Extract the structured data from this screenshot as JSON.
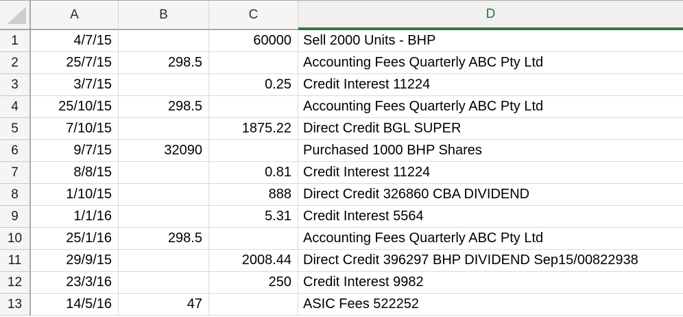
{
  "sheet": {
    "col_headers": [
      "A",
      "B",
      "C",
      "D"
    ],
    "selected_column": "D",
    "colors": {
      "selected_header_green": "#3b7248",
      "selected_header_text": "#2f7040",
      "header_bg": "#f5f5f4",
      "gridline": "#d9d9d9"
    },
    "rows": [
      {
        "num": "1",
        "A": "4/7/15",
        "B": "",
        "C": "60000",
        "D": "Sell 2000 Units - BHP"
      },
      {
        "num": "2",
        "A": "25/7/15",
        "B": "298.5",
        "C": "",
        "D": "Accounting Fees Quarterly ABC Pty Ltd"
      },
      {
        "num": "3",
        "A": "3/7/15",
        "B": "",
        "C": "0.25",
        "D": "Credit Interest 11224"
      },
      {
        "num": "4",
        "A": "25/10/15",
        "B": "298.5",
        "C": "",
        "D": "Accounting Fees Quarterly ABC Pty Ltd"
      },
      {
        "num": "5",
        "A": "7/10/15",
        "B": "",
        "C": "1875.22",
        "D": "Direct Credit BGL SUPER"
      },
      {
        "num": "6",
        "A": "9/7/15",
        "B": "32090",
        "C": "",
        "D": "Purchased 1000 BHP Shares"
      },
      {
        "num": "7",
        "A": "8/8/15",
        "B": "",
        "C": "0.81",
        "D": "Credit Interest 11224"
      },
      {
        "num": "8",
        "A": "1/10/15",
        "B": "",
        "C": "888",
        "D": "Direct Credit 326860 CBA DIVIDEND"
      },
      {
        "num": "9",
        "A": "1/1/16",
        "B": "",
        "C": "5.31",
        "D": "Credit Interest 5564"
      },
      {
        "num": "10",
        "A": "25/1/16",
        "B": "298.5",
        "C": "",
        "D": "Accounting Fees Quarterly ABC Pty Ltd"
      },
      {
        "num": "11",
        "A": "29/9/15",
        "B": "",
        "C": "2008.44",
        "D": "Direct Credit 396297 BHP DIVIDEND Sep15/00822938"
      },
      {
        "num": "12",
        "A": "23/3/16",
        "B": "",
        "C": "250",
        "D": "Credit Interest 9982"
      },
      {
        "num": "13",
        "A": "14/5/16",
        "B": "47",
        "C": "",
        "D": "ASIC Fees 522252"
      }
    ]
  }
}
